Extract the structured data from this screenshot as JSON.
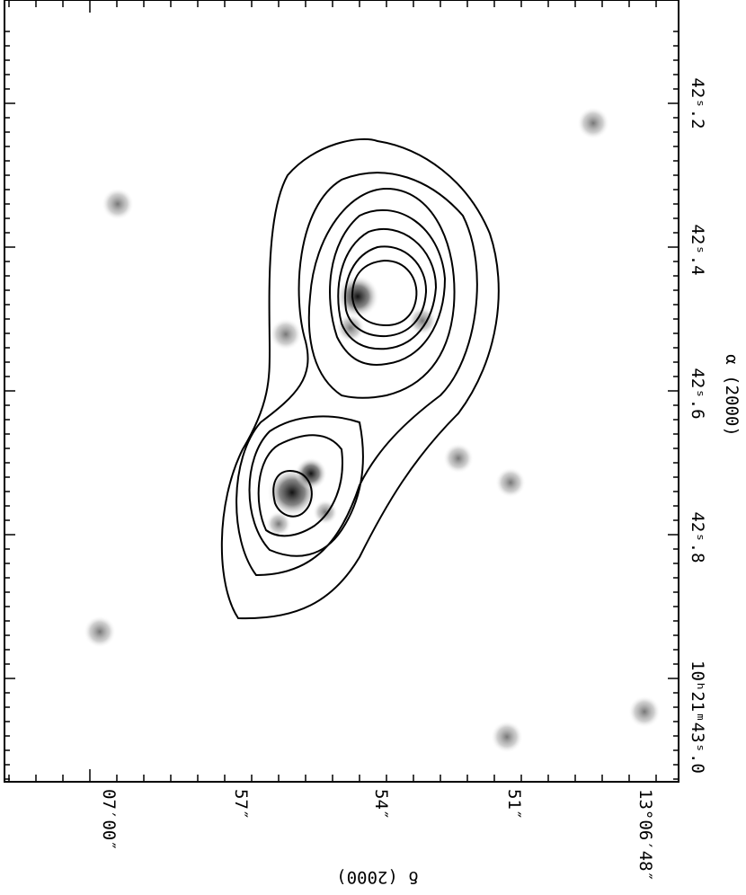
{
  "axes": {
    "right": {
      "title": "α (2000)",
      "tick_labels": [
        "42ˢ.2",
        "42ˢ.4",
        "42ˢ.6",
        "42ˢ.8",
        "10ʰ21ᵐ43ˢ.0"
      ]
    },
    "bottom": {
      "title": "δ (2000)",
      "tick_labels": [
        "07′00″",
        "57″",
        "54″",
        "51″",
        "13°06′48″"
      ]
    }
  }
}
